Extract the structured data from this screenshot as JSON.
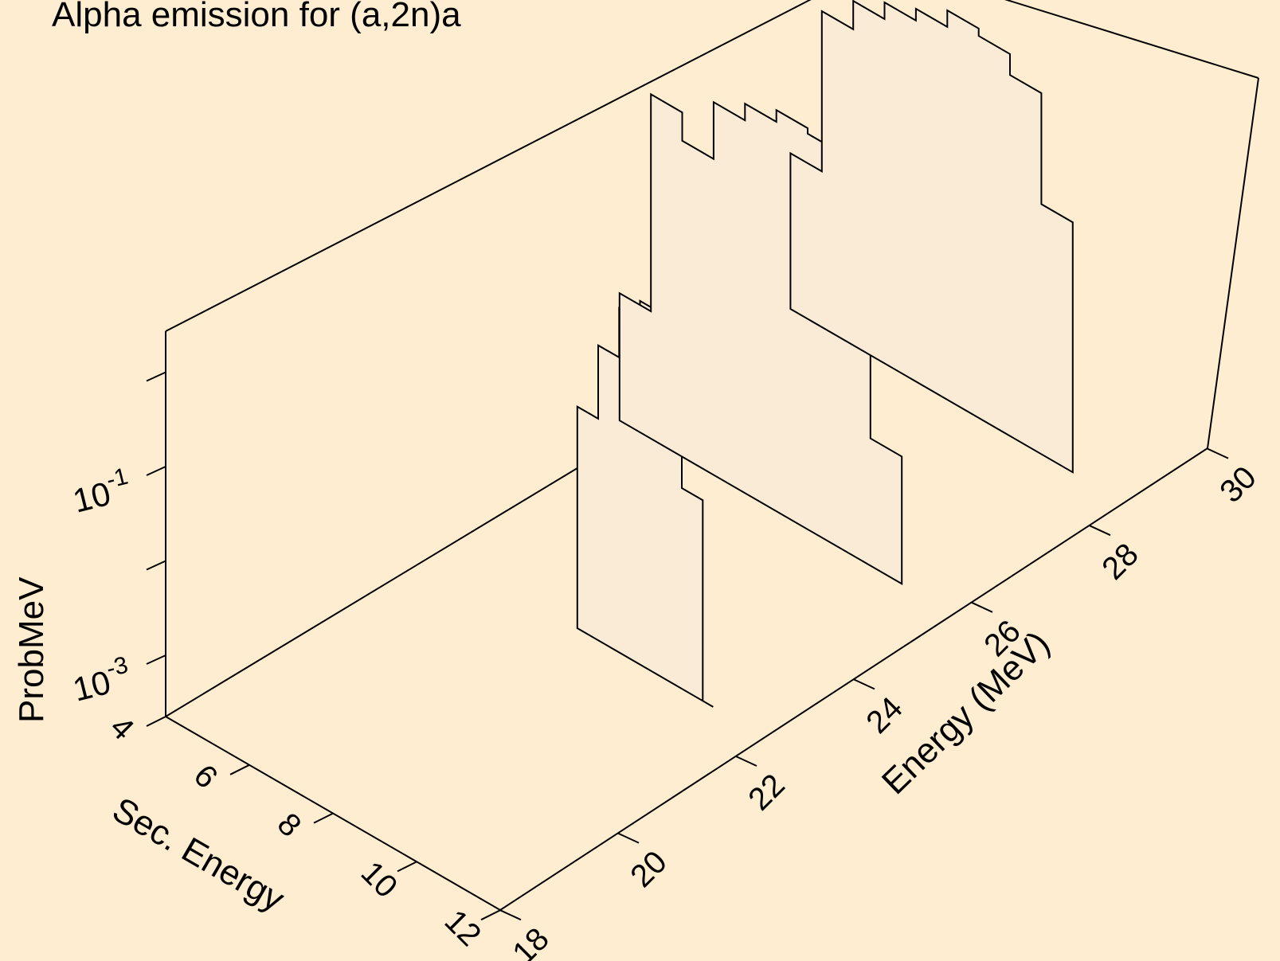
{
  "colors": {
    "background": "#FFEDD1",
    "histogram_fill": "#FAEBD7",
    "line": "#000000"
  },
  "chart_data": {
    "type": "3d-histogram",
    "title": "Alpha emission for (a,2n)a",
    "zlabel": "ProbMeV",
    "xlabel": "Sec. Energy",
    "ylabel": "Energy (MeV)",
    "z_scale": "log",
    "xlim": [
      4,
      12
    ],
    "ylim": [
      18,
      30
    ],
    "x_ticks": [
      "4",
      "6",
      "8",
      "10",
      "12"
    ],
    "y_ticks": [
      "18",
      "20",
      "22",
      "24",
      "26",
      "28",
      "30"
    ],
    "z_ticks": [
      {
        "base": "10",
        "exp": "-3"
      },
      {
        "base": "10",
        "exp": "-1"
      }
    ],
    "grid": false,
    "series": [
      {
        "incident_energy": 22.5,
        "bins": [
          7.5,
          7.75,
          8.0,
          8.25,
          8.5,
          8.75,
          9.0,
          9.25,
          9.5,
          9.75,
          10.0,
          10.25,
          10.5,
          10.75
        ],
        "values": [
          0.05,
          0.05,
          0.3,
          0.3,
          1.0,
          1.0,
          1.6,
          1.6,
          0.9,
          0.9,
          0.03,
          0.03,
          0,
          0
        ]
      },
      {
        "incident_energy": 25.7,
        "bins": [
          4.0,
          4.75,
          5.5,
          6.25,
          7.0,
          7.75,
          8.5,
          9.25,
          10.0,
          10.75
        ],
        "values": [
          0.005,
          1.0,
          0.5,
          2.0,
          3.0,
          4.0,
          3.5,
          0.9,
          0.005,
          0.005
        ]
      },
      {
        "incident_energy": 28.6,
        "bins": [
          4.0,
          4.75,
          5.5,
          6.25,
          7.0,
          7.75,
          8.5,
          9.25,
          10.0,
          10.75
        ],
        "values": [
          0.01,
          0.5,
          1.0,
          1.5,
          2.0,
          3.0,
          2.5,
          1.5,
          0.1,
          0.01
        ]
      }
    ]
  }
}
